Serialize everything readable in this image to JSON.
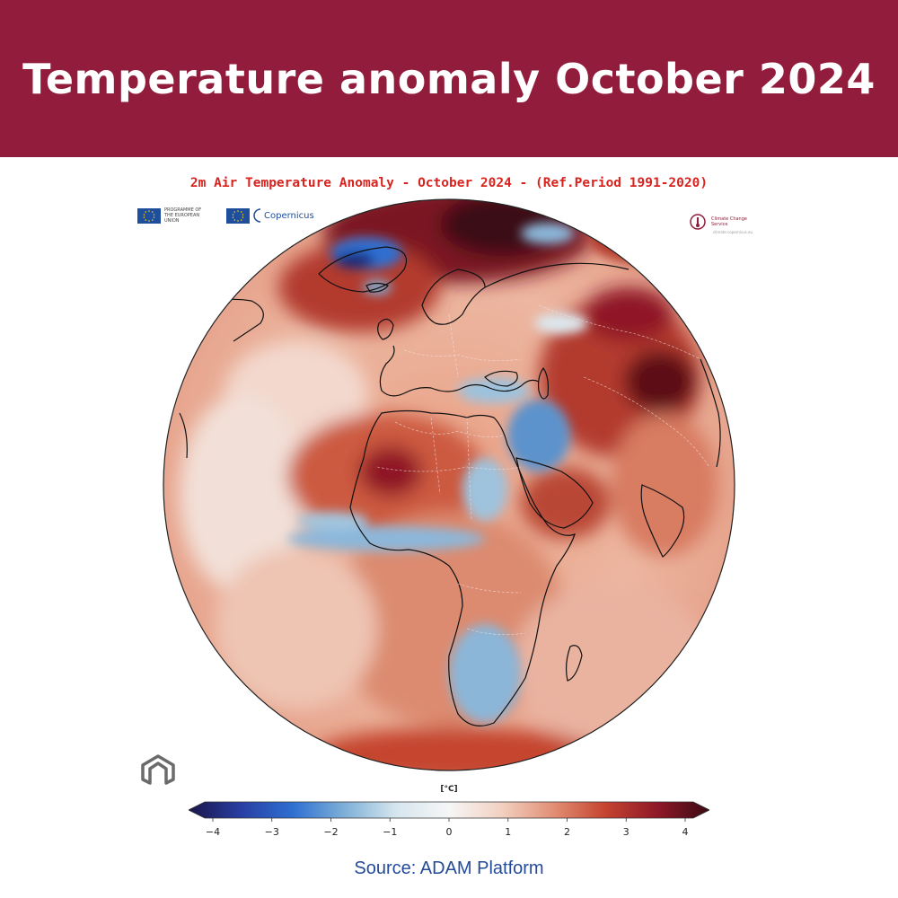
{
  "banner": {
    "title": "Temperature anomaly October 2024",
    "background_color": "#921c3b"
  },
  "map": {
    "title": "2m Air Temperature Anomaly - October 2024 - (Ref.Period 1991-2020)",
    "projection": "orthographic",
    "center": "Africa / Europe",
    "warm_hotspots": [
      "Arctic / Barents Sea",
      "Central Sahara",
      "Mongolia / North China",
      "Arabian Peninsula"
    ],
    "cool_spots": [
      "Greenland",
      "Eastern Mediterranean / Middle East",
      "Sahel belt",
      "Southern Africa"
    ]
  },
  "logos": {
    "eu_text": "PROGRAMME OF THE EUROPEAN UNION",
    "copernicus_text": "Copernicus",
    "c3s_text": "Climate Change Service",
    "c3s_url": "climate.copernicus.eu",
    "adam": "adam-logo"
  },
  "colorbar": {
    "unit": "[°C]",
    "min": -4,
    "max": 4,
    "ticks": [
      "−4",
      "−3",
      "−2",
      "−1",
      "0",
      "1",
      "2",
      "3",
      "4"
    ],
    "colors": [
      "#1a1547",
      "#283ea3",
      "#2f6fd1",
      "#7fb0d8",
      "#d7e6ee",
      "#f6f6f6",
      "#f2d1c2",
      "#e28f75",
      "#c5442f",
      "#8f1728",
      "#3a0a14"
    ]
  },
  "source": "Source: ADAM Platform"
}
